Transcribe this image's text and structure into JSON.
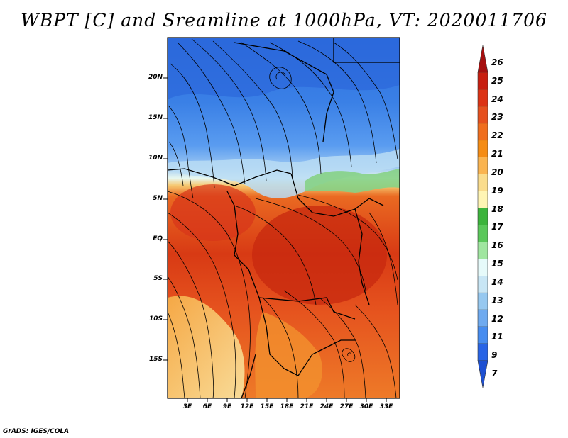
{
  "title": "WBPT [C] and Sreamline at 1000hPa, VT: 2020011706",
  "footer": "GrADS: IGES/COLA",
  "map": {
    "lat_ticks": [
      "20N",
      "15N",
      "10N",
      "5N",
      "EQ",
      "5S",
      "10S",
      "15S"
    ],
    "lon_ticks": [
      "3E",
      "6E",
      "9E",
      "12E",
      "15E",
      "18E",
      "21E",
      "24E",
      "27E",
      "30E",
      "33E"
    ]
  },
  "colorbar": {
    "labels": [
      "26",
      "25",
      "24",
      "23",
      "22",
      "21",
      "20",
      "19",
      "18",
      "17",
      "16",
      "15",
      "14",
      "13",
      "12",
      "11",
      "9",
      "7"
    ],
    "colors": [
      "#a50f0f",
      "#c81e0f",
      "#dc3214",
      "#e6501e",
      "#f06e1e",
      "#f58c14",
      "#fab450",
      "#fadc8c",
      "#fff5b4",
      "#3cb43c",
      "#5ac85a",
      "#a0e6a0",
      "#e6fafa",
      "#c8e6f5",
      "#96c8f0",
      "#6eaaf0",
      "#468cf0",
      "#2864e6",
      "#1e50d2"
    ]
  }
}
